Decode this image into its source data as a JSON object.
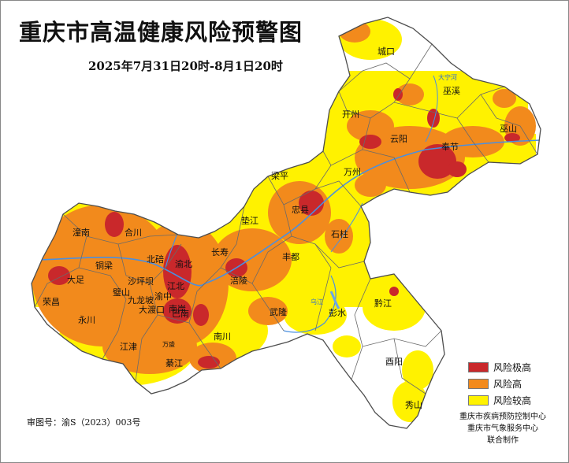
{
  "title": "重庆市高温健康风险预警图",
  "subtitle": "2025年7月31日20时-8月1日20时",
  "legend": [
    {
      "label": "风险极高",
      "color": "#c9282b"
    },
    {
      "label": "风险高",
      "color": "#f28a1c"
    },
    {
      "label": "风险较高",
      "color": "#fff200"
    }
  ],
  "review_number": "审图号：渝S（2023）003号",
  "credits": [
    "重庆市疾病预防控制中心",
    "重庆市气象服务中心",
    "联合制作"
  ],
  "colors": {
    "base": "#ffffff",
    "boundary": "#6a6a6a",
    "river": "#4a8fe0"
  },
  "places": {
    "chengkou": "城口",
    "wuxi": "巫溪",
    "kaizhou": "开州",
    "wushan": "巫山",
    "yunyang": "云阳",
    "fengjie": "奉节",
    "liangping": "梁平",
    "wanzhou": "万州",
    "zhongxian": "忠县",
    "dianjiang": "垫江",
    "shizhu": "石柱",
    "tongnan": "潼南",
    "hechuan": "合川",
    "beibei": "北碚",
    "yubei": "渝北",
    "changshou": "长寿",
    "fengdu": "丰都",
    "tongliang": "铜梁",
    "dazu": "大足",
    "shapingba": "沙坪坝",
    "jiangbei": "江北",
    "bishan": "璧山",
    "yuzhong": "渝中",
    "jiulongpo": "九龙坡",
    "dadukou": "大渡口",
    "nanan": "南岸",
    "fuling": "涪陵",
    "rongchang": "荣昌",
    "yongchuan": "永川",
    "banan": "巴南",
    "wulong": "武隆",
    "pengshui": "彭水",
    "qianjiang": "黔江",
    "jiangjin": "江津",
    "nanchuan": "南川",
    "qijiang": "綦江",
    "youyang": "酉阳",
    "xiushan": "秀山",
    "wansheng": "万盛"
  },
  "rivers": {
    "daning": "大宁河",
    "wujiang": "乌江"
  }
}
